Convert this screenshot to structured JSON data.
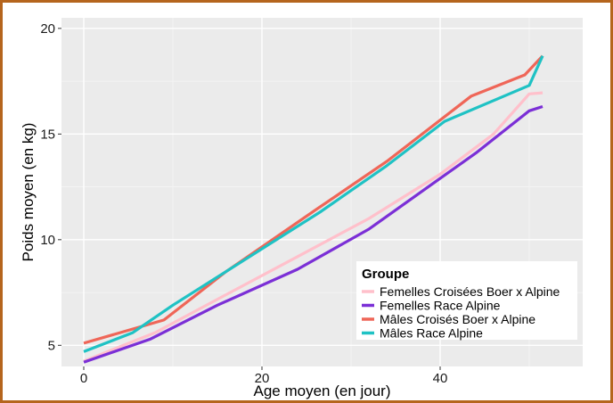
{
  "chart_data": {
    "type": "line",
    "xlabel": "Age moyen (en jour)",
    "ylabel": "Poids moyen (en kg)",
    "xlim": [
      -2.5,
      56
    ],
    "ylim": [
      4.0,
      20.5
    ],
    "xticks": [
      0,
      20,
      40
    ],
    "yticks": [
      5,
      10,
      15,
      20
    ],
    "x_tick_labels": [
      "0",
      "20",
      "40"
    ],
    "y_tick_labels": [
      "5",
      "10",
      "15",
      "20"
    ],
    "grid": true,
    "background": "#ebebeb",
    "legend": {
      "title": "Groupe",
      "position": "bottom-right"
    },
    "series": [
      {
        "name": "Femelles Croisées Boer x Alpine",
        "color": "#ffc0cb",
        "x": [
          0,
          8,
          16,
          24,
          32,
          40,
          46,
          50,
          51.5
        ],
        "y": [
          4.25,
          5.6,
          7.4,
          9.2,
          11.0,
          13.1,
          15.0,
          16.9,
          16.95
        ]
      },
      {
        "name": "Femelles Race Alpine",
        "color": "#7b2fd6",
        "x": [
          0,
          7.5,
          15,
          24,
          32,
          40,
          44,
          50,
          51.5
        ],
        "y": [
          4.2,
          5.3,
          6.9,
          8.6,
          10.5,
          12.9,
          14.1,
          16.1,
          16.3
        ]
      },
      {
        "name": "Mâles Croisés Boer x Alpine",
        "color": "#ef6658",
        "x": [
          0,
          9,
          16,
          26,
          34,
          43.5,
          49.5,
          51.5
        ],
        "y": [
          5.1,
          6.2,
          8.5,
          11.4,
          13.7,
          16.8,
          17.8,
          18.7
        ]
      },
      {
        "name": "Mâles Race Alpine",
        "color": "#1fc2c4",
        "x": [
          0,
          5.5,
          10,
          26.5,
          34,
          40.5,
          50,
          51.5
        ],
        "y": [
          4.7,
          5.6,
          6.9,
          11.3,
          13.5,
          15.6,
          17.3,
          18.7
        ]
      }
    ]
  }
}
